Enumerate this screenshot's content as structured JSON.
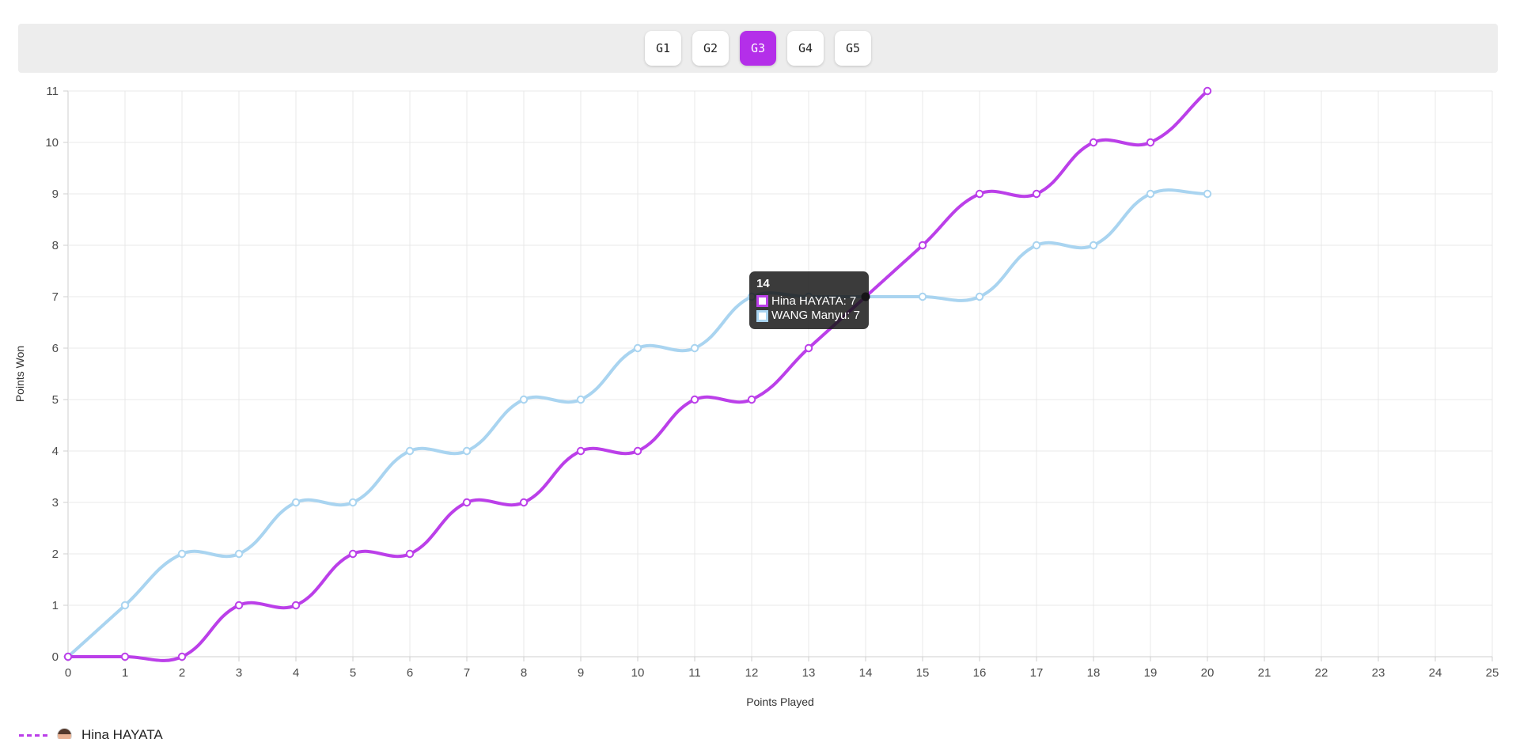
{
  "tab_bar": {
    "tabs": [
      {
        "label": "G1",
        "selected": false
      },
      {
        "label": "G2",
        "selected": false
      },
      {
        "label": "G3",
        "selected": true
      },
      {
        "label": "G4",
        "selected": false
      },
      {
        "label": "G5",
        "selected": false
      }
    ],
    "selected_color": "#b42fe9"
  },
  "tooltip": {
    "title": "14",
    "rows": [
      {
        "label": "Hina HAYATA",
        "value": "7",
        "color": "#bb3fe9"
      },
      {
        "label": "WANG Manyu",
        "value": "7",
        "color": "#a9d4f0"
      }
    ]
  },
  "legend": {
    "items": [
      {
        "label": "Hina HAYATA",
        "color": "#bb3fe9"
      }
    ]
  },
  "chart_data": {
    "type": "line",
    "title": "",
    "xlabel": "Points Played",
    "ylabel": "Points Won",
    "x": [
      0,
      1,
      2,
      3,
      4,
      5,
      6,
      7,
      8,
      9,
      10,
      11,
      12,
      13,
      14,
      15,
      16,
      17,
      18,
      19,
      20
    ],
    "series": [
      {
        "name": "Hina HAYATA",
        "color": "#bb3fe9",
        "values": [
          0,
          0,
          0,
          1,
          1,
          2,
          2,
          3,
          3,
          4,
          4,
          5,
          5,
          6,
          7,
          8,
          9,
          9,
          10,
          10,
          11
        ]
      },
      {
        "name": "WANG Manyu",
        "color": "#a9d4f0",
        "values": [
          0,
          1,
          2,
          2,
          3,
          3,
          4,
          4,
          5,
          5,
          6,
          6,
          7,
          7,
          7,
          7,
          7,
          8,
          8,
          9,
          9
        ]
      }
    ],
    "xlim": [
      0,
      25
    ],
    "ylim": [
      0,
      11
    ],
    "x_tick_step": 1,
    "y_tick_step": 1,
    "grid": true,
    "legend_position": "bottom-left",
    "active_point": {
      "x": 14,
      "y": 7
    }
  },
  "colors": {
    "grid": "#e9e9e9",
    "axis": "#cfcfcf",
    "tick_text": "#4a4a4a",
    "axis_title": "#333333",
    "active_point": "#17121d",
    "tab_bg": "#ededed"
  }
}
